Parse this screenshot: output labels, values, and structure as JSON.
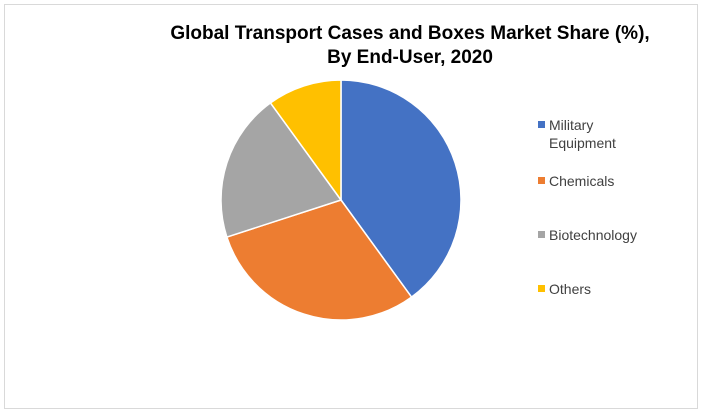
{
  "chart_data": {
    "type": "pie",
    "title_line1": "Global Transport Cases and Boxes Market Share (%),",
    "title_line2": "By End-User, 2020",
    "categories": [
      "Military Equipment",
      "Chemicals",
      "Biotechnology",
      "Others"
    ],
    "values": [
      40,
      30,
      20,
      10
    ],
    "colors": [
      "#4472C4",
      "#ED7D31",
      "#A5A5A5",
      "#FFC000"
    ],
    "legend_position": "right",
    "start_angle_deg": 0,
    "direction": "clockwise"
  }
}
